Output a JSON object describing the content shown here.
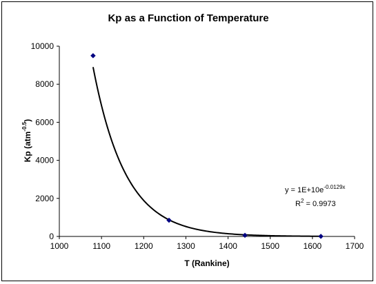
{
  "chart_data": {
    "type": "scatter",
    "title": "Kp as a Function of Temperature",
    "xlabel": "T (Rankine)",
    "ylabel_main": "Kp (atm",
    "ylabel_sup": "-0.5",
    "ylabel_close": ")",
    "xlim": [
      1000,
      1700
    ],
    "ylim": [
      0,
      10000
    ],
    "xticks": [
      "1000",
      "1100",
      "1200",
      "1300",
      "1400",
      "1500",
      "1600",
      "1700"
    ],
    "yticks": [
      "0",
      "2000",
      "4000",
      "6000",
      "8000",
      "10000"
    ],
    "grid": false,
    "series": [
      {
        "marker": "diamond",
        "color": "#000080",
        "points": [
          {
            "x": 1080,
            "y": 9500
          },
          {
            "x": 1260,
            "y": 850
          },
          {
            "x": 1440,
            "y": 60
          },
          {
            "x": 1620,
            "y": 5
          }
        ]
      }
    ],
    "trendline": {
      "type": "exponential",
      "a": 10000000000,
      "b": -0.0129,
      "x_from": 1080,
      "x_to": 1620,
      "color": "#000000",
      "equation_base": "y = 1E+10e",
      "equation_exp": "-0.0129x",
      "r2_base": "R",
      "r2_sup": "2",
      "r2_value": " = 0.9973"
    }
  }
}
